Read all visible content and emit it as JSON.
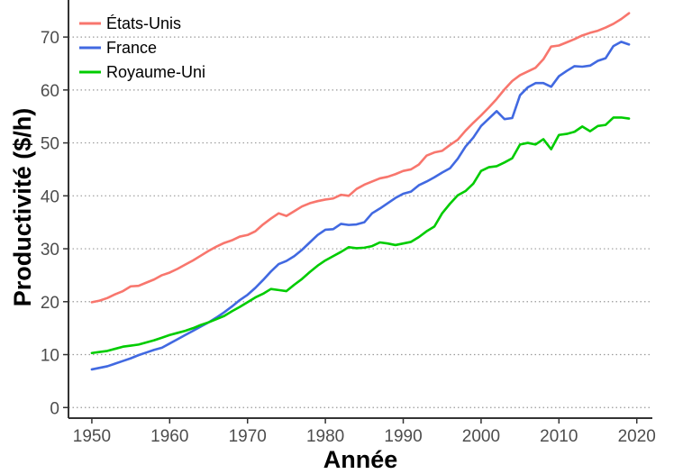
{
  "chart_data": {
    "type": "line",
    "title": "",
    "xlabel": "Année",
    "ylabel": "Productivité ($/h)",
    "xlim": [
      1947,
      2022
    ],
    "ylim": [
      -2,
      77
    ],
    "x_ticks": [
      1950,
      1960,
      1970,
      1980,
      1990,
      2000,
      2010,
      2020
    ],
    "y_ticks": [
      0,
      10,
      20,
      30,
      40,
      50,
      60,
      70
    ],
    "grid": "horizontal dotted",
    "legend_position": "top-left",
    "x": [
      1950,
      1951,
      1952,
      1953,
      1954,
      1955,
      1956,
      1957,
      1958,
      1959,
      1960,
      1961,
      1962,
      1963,
      1964,
      1965,
      1966,
      1967,
      1968,
      1969,
      1970,
      1971,
      1972,
      1973,
      1974,
      1975,
      1976,
      1977,
      1978,
      1979,
      1980,
      1981,
      1982,
      1983,
      1984,
      1985,
      1986,
      1987,
      1988,
      1989,
      1990,
      1991,
      1992,
      1993,
      1994,
      1995,
      1996,
      1997,
      1998,
      1999,
      2000,
      2001,
      2002,
      2003,
      2004,
      2005,
      2006,
      2007,
      2008,
      2009,
      2010,
      2011,
      2012,
      2013,
      2014,
      2015,
      2016,
      2017,
      2018,
      2019
    ],
    "series": [
      {
        "name": "États-Unis",
        "color": "#f8766d",
        "values": [
          19.9,
          20.2,
          20.7,
          21.4,
          22.0,
          22.9,
          23.0,
          23.6,
          24.2,
          25.0,
          25.5,
          26.2,
          27.0,
          27.8,
          28.7,
          29.6,
          30.4,
          31.1,
          31.6,
          32.3,
          32.6,
          33.3,
          34.6,
          35.7,
          36.7,
          36.2,
          37.1,
          38.0,
          38.6,
          39.0,
          39.3,
          39.5,
          40.2,
          40.0,
          41.3,
          42.1,
          42.7,
          43.3,
          43.6,
          44.1,
          44.7,
          45.0,
          45.9,
          47.6,
          48.2,
          48.5,
          49.6,
          50.6,
          52.3,
          53.8,
          55.2,
          56.7,
          58.3,
          60.1,
          61.7,
          62.8,
          63.5,
          64.2,
          65.8,
          68.2,
          68.4,
          69.0,
          69.6,
          70.3,
          70.8,
          71.2,
          71.8,
          72.5,
          73.4,
          74.5
        ]
      },
      {
        "name": "France",
        "color": "#4169e1",
        "values": [
          7.2,
          7.5,
          7.8,
          8.3,
          8.8,
          9.3,
          9.9,
          10.4,
          10.9,
          11.3,
          12.1,
          12.9,
          13.7,
          14.5,
          15.3,
          16.1,
          17.0,
          18.0,
          19.1,
          20.3,
          21.3,
          22.6,
          24.1,
          25.7,
          27.1,
          27.7,
          28.6,
          29.8,
          31.2,
          32.6,
          33.6,
          33.7,
          34.7,
          34.5,
          34.6,
          35.0,
          36.7,
          37.6,
          38.6,
          39.6,
          40.4,
          40.8,
          42.0,
          42.7,
          43.5,
          44.4,
          45.2,
          47.0,
          49.3,
          51.0,
          53.2,
          54.6,
          56.0,
          54.5,
          54.7,
          59.0,
          60.5,
          61.3,
          61.3,
          60.6,
          62.6,
          63.6,
          64.5,
          64.4,
          64.6,
          65.5,
          66.0,
          68.3,
          69.1,
          68.6
        ]
      },
      {
        "name": "Royaume-Uni",
        "color": "#00cc00",
        "values": [
          10.3,
          10.5,
          10.7,
          11.1,
          11.5,
          11.7,
          11.9,
          12.3,
          12.7,
          13.2,
          13.7,
          14.1,
          14.5,
          15.0,
          15.6,
          16.1,
          16.7,
          17.3,
          18.2,
          19.0,
          19.9,
          20.8,
          21.5,
          22.4,
          22.2,
          22.0,
          23.2,
          24.3,
          25.6,
          26.8,
          27.8,
          28.6,
          29.4,
          30.3,
          30.1,
          30.2,
          30.5,
          31.2,
          31.0,
          30.7,
          31.0,
          31.3,
          32.2,
          33.3,
          34.2,
          36.7,
          38.5,
          40.1,
          40.9,
          42.3,
          44.7,
          45.4,
          45.6,
          46.3,
          47.1,
          49.7,
          50.0,
          49.7,
          50.7,
          48.8,
          51.5,
          51.7,
          52.1,
          53.1,
          52.2,
          53.2,
          53.4,
          54.8,
          54.8,
          54.6
        ]
      }
    ]
  }
}
